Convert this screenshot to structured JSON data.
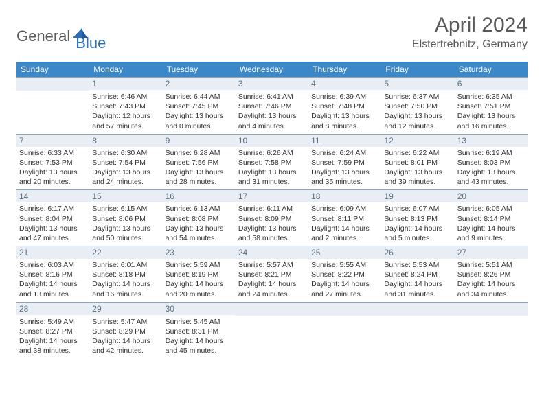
{
  "logo": {
    "text1": "General",
    "text2": "Blue",
    "icon_color": "#2d6fb5"
  },
  "header": {
    "month": "April 2024",
    "location": "Elstertrebnitz, Germany"
  },
  "colors": {
    "header_bg": "#3b87c8",
    "header_text": "#ffffff",
    "daynum_bg": "#e8eef3",
    "daynum_border": "#8aa5bc",
    "daynum_color": "#5a6f82",
    "body_text": "#333333"
  },
  "weekdays": [
    "Sunday",
    "Monday",
    "Tuesday",
    "Wednesday",
    "Thursday",
    "Friday",
    "Saturday"
  ],
  "days": {
    "1": {
      "sunrise": "6:46 AM",
      "sunset": "7:43 PM",
      "daylight": "12 hours and 57 minutes."
    },
    "2": {
      "sunrise": "6:44 AM",
      "sunset": "7:45 PM",
      "daylight": "13 hours and 0 minutes."
    },
    "3": {
      "sunrise": "6:41 AM",
      "sunset": "7:46 PM",
      "daylight": "13 hours and 4 minutes."
    },
    "4": {
      "sunrise": "6:39 AM",
      "sunset": "7:48 PM",
      "daylight": "13 hours and 8 minutes."
    },
    "5": {
      "sunrise": "6:37 AM",
      "sunset": "7:50 PM",
      "daylight": "13 hours and 12 minutes."
    },
    "6": {
      "sunrise": "6:35 AM",
      "sunset": "7:51 PM",
      "daylight": "13 hours and 16 minutes."
    },
    "7": {
      "sunrise": "6:33 AM",
      "sunset": "7:53 PM",
      "daylight": "13 hours and 20 minutes."
    },
    "8": {
      "sunrise": "6:30 AM",
      "sunset": "7:54 PM",
      "daylight": "13 hours and 24 minutes."
    },
    "9": {
      "sunrise": "6:28 AM",
      "sunset": "7:56 PM",
      "daylight": "13 hours and 28 minutes."
    },
    "10": {
      "sunrise": "6:26 AM",
      "sunset": "7:58 PM",
      "daylight": "13 hours and 31 minutes."
    },
    "11": {
      "sunrise": "6:24 AM",
      "sunset": "7:59 PM",
      "daylight": "13 hours and 35 minutes."
    },
    "12": {
      "sunrise": "6:22 AM",
      "sunset": "8:01 PM",
      "daylight": "13 hours and 39 minutes."
    },
    "13": {
      "sunrise": "6:19 AM",
      "sunset": "8:03 PM",
      "daylight": "13 hours and 43 minutes."
    },
    "14": {
      "sunrise": "6:17 AM",
      "sunset": "8:04 PM",
      "daylight": "13 hours and 47 minutes."
    },
    "15": {
      "sunrise": "6:15 AM",
      "sunset": "8:06 PM",
      "daylight": "13 hours and 50 minutes."
    },
    "16": {
      "sunrise": "6:13 AM",
      "sunset": "8:08 PM",
      "daylight": "13 hours and 54 minutes."
    },
    "17": {
      "sunrise": "6:11 AM",
      "sunset": "8:09 PM",
      "daylight": "13 hours and 58 minutes."
    },
    "18": {
      "sunrise": "6:09 AM",
      "sunset": "8:11 PM",
      "daylight": "14 hours and 2 minutes."
    },
    "19": {
      "sunrise": "6:07 AM",
      "sunset": "8:13 PM",
      "daylight": "14 hours and 5 minutes."
    },
    "20": {
      "sunrise": "6:05 AM",
      "sunset": "8:14 PM",
      "daylight": "14 hours and 9 minutes."
    },
    "21": {
      "sunrise": "6:03 AM",
      "sunset": "8:16 PM",
      "daylight": "14 hours and 13 minutes."
    },
    "22": {
      "sunrise": "6:01 AM",
      "sunset": "8:18 PM",
      "daylight": "14 hours and 16 minutes."
    },
    "23": {
      "sunrise": "5:59 AM",
      "sunset": "8:19 PM",
      "daylight": "14 hours and 20 minutes."
    },
    "24": {
      "sunrise": "5:57 AM",
      "sunset": "8:21 PM",
      "daylight": "14 hours and 24 minutes."
    },
    "25": {
      "sunrise": "5:55 AM",
      "sunset": "8:22 PM",
      "daylight": "14 hours and 27 minutes."
    },
    "26": {
      "sunrise": "5:53 AM",
      "sunset": "8:24 PM",
      "daylight": "14 hours and 31 minutes."
    },
    "27": {
      "sunrise": "5:51 AM",
      "sunset": "8:26 PM",
      "daylight": "14 hours and 34 minutes."
    },
    "28": {
      "sunrise": "5:49 AM",
      "sunset": "8:27 PM",
      "daylight": "14 hours and 38 minutes."
    },
    "29": {
      "sunrise": "5:47 AM",
      "sunset": "8:29 PM",
      "daylight": "14 hours and 42 minutes."
    },
    "30": {
      "sunrise": "5:45 AM",
      "sunset": "8:31 PM",
      "daylight": "14 hours and 45 minutes."
    }
  },
  "grid": [
    [
      null,
      1,
      2,
      3,
      4,
      5,
      6
    ],
    [
      7,
      8,
      9,
      10,
      11,
      12,
      13
    ],
    [
      14,
      15,
      16,
      17,
      18,
      19,
      20
    ],
    [
      21,
      22,
      23,
      24,
      25,
      26,
      27
    ],
    [
      28,
      29,
      30,
      null,
      null,
      null,
      null
    ]
  ],
  "labels": {
    "sunrise": "Sunrise:",
    "sunset": "Sunset:",
    "daylight": "Daylight:"
  }
}
